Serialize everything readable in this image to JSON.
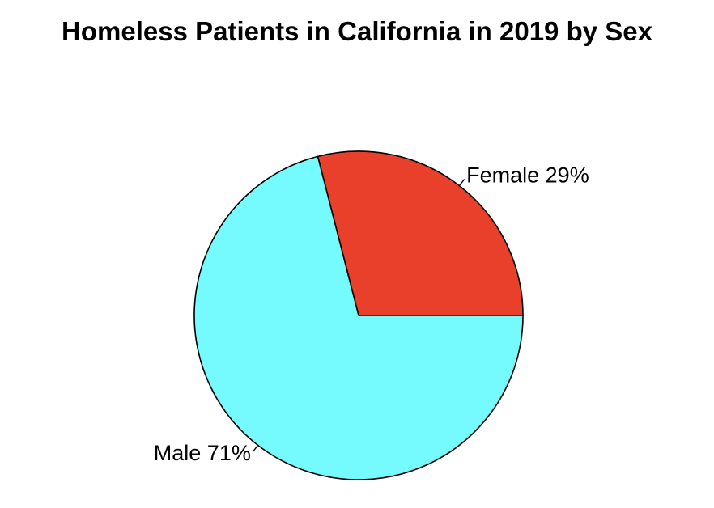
{
  "chart_data": {
    "type": "pie",
    "title": "Homeless Patients in California in 2019 by Sex",
    "slices": [
      {
        "label": "Female 29%",
        "category": "Female",
        "value": 29,
        "color": "#E8402A"
      },
      {
        "label": "Male 71%",
        "category": "Male",
        "value": 71,
        "color": "#75FBFD"
      }
    ],
    "start_angle_deg": 0,
    "direction": "counterclockwise",
    "legend": "none",
    "slice_border_color": "#000000"
  }
}
